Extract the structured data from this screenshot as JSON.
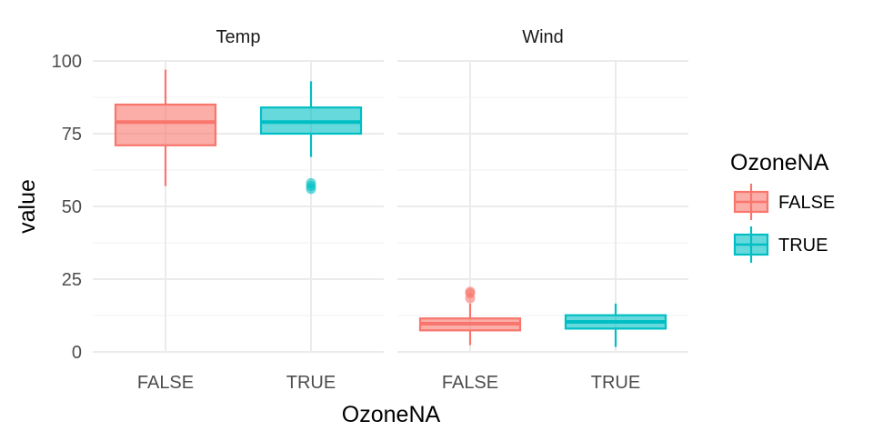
{
  "chart_data": {
    "type": "boxplot",
    "facets": [
      "Temp",
      "Wind"
    ],
    "categories": [
      "FALSE",
      "TRUE"
    ],
    "xlabel": "OzoneNA",
    "ylabel": "value",
    "ylim": [
      0,
      100
    ],
    "yticks": [
      0,
      25,
      50,
      75,
      100
    ],
    "legend": {
      "title": "OzoneNA",
      "position": "right",
      "entries": [
        {
          "label": "FALSE",
          "color": "#F8766D"
        },
        {
          "label": "TRUE",
          "color": "#00BFC4"
        }
      ]
    },
    "grid": true,
    "boxes": [
      {
        "facet": "Temp",
        "category": "FALSE",
        "whisker_low": 57,
        "q1": 71,
        "median": 79,
        "q3": 85,
        "whisker_high": 97,
        "outliers": []
      },
      {
        "facet": "Temp",
        "category": "TRUE",
        "whisker_low": 67,
        "q1": 75,
        "median": 79,
        "q3": 84,
        "whisker_high": 93,
        "outliers": [
          56,
          57,
          58
        ]
      },
      {
        "facet": "Wind",
        "category": "FALSE",
        "whisker_low": 2.3,
        "q1": 7.4,
        "median": 9.7,
        "q3": 11.5,
        "whisker_high": 16.6,
        "outliers": [
          18.4,
          20.1,
          20.7
        ]
      },
      {
        "facet": "Wind",
        "category": "TRUE",
        "whisker_low": 1.7,
        "q1": 8.0,
        "median": 10.3,
        "q3": 12.6,
        "whisker_high": 16.6,
        "outliers": []
      }
    ]
  }
}
